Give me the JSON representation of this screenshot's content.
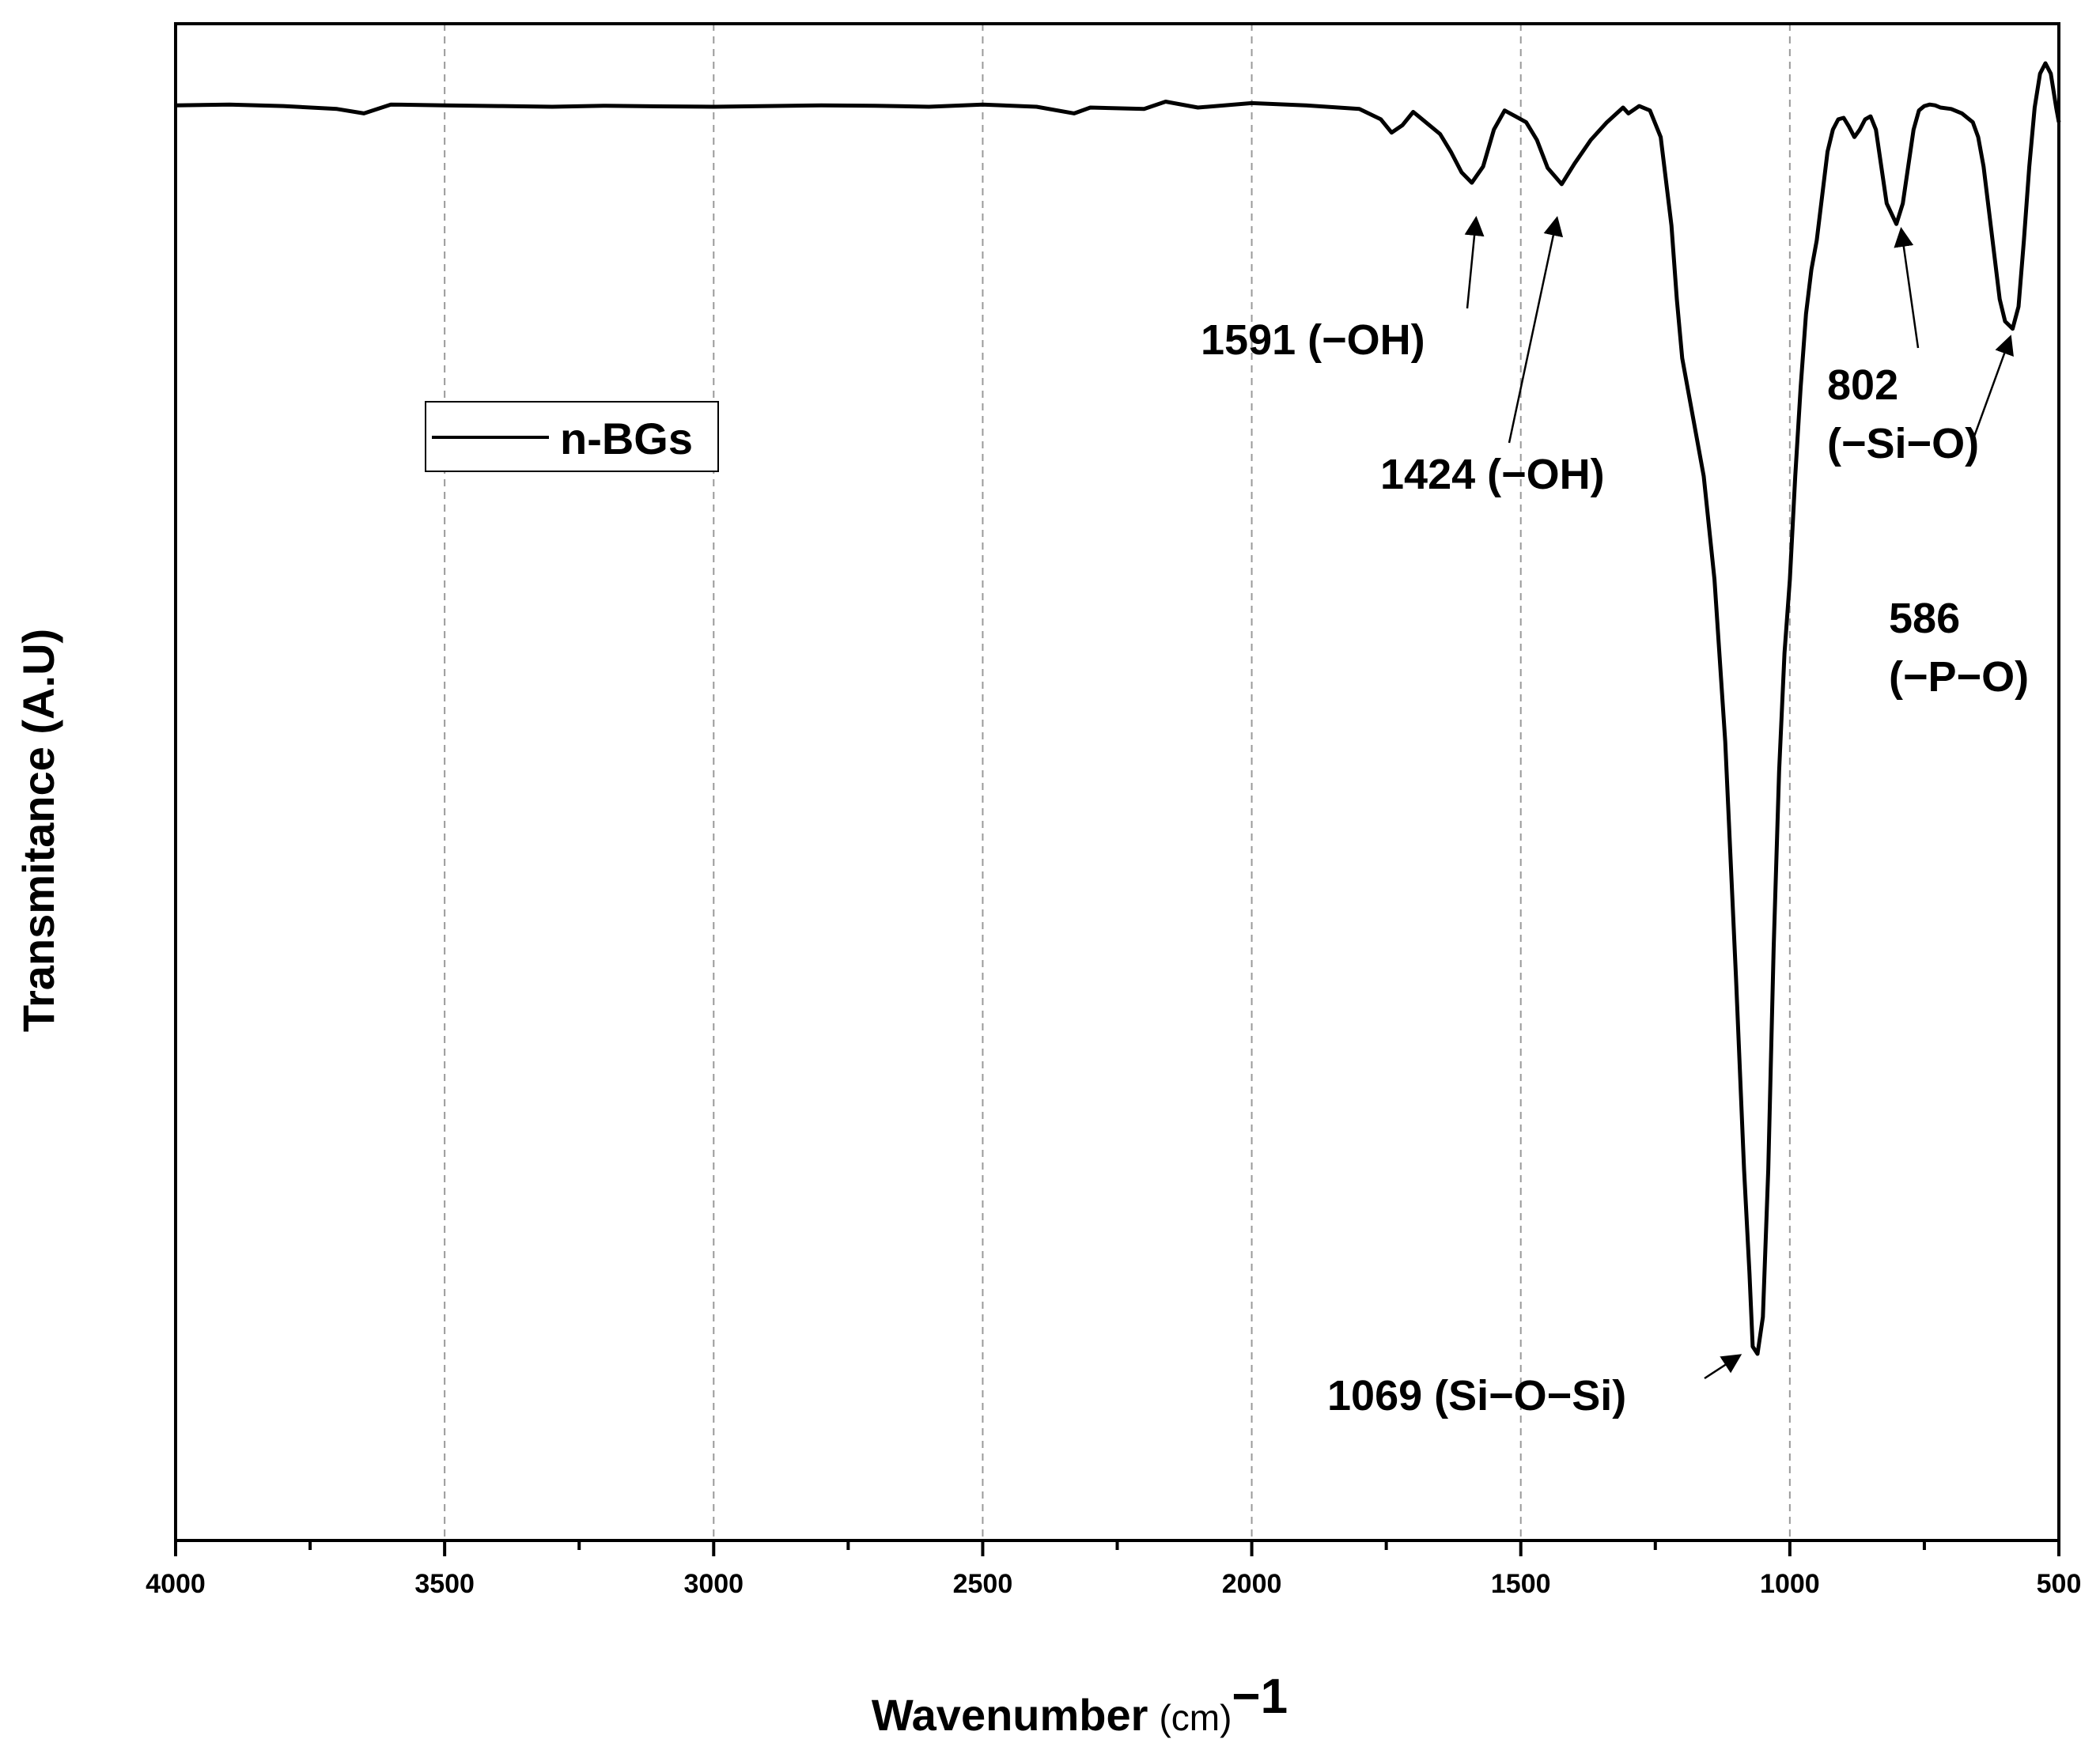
{
  "chart_data": {
    "type": "line",
    "title": "",
    "xlabel": "Wavenumber",
    "xlabel_unit": "(cm)",
    "xlabel_sup": "−1",
    "ylabel": "Transmitance (A.U)",
    "xlim": [
      4000,
      500
    ],
    "ylim": [
      0,
      1
    ],
    "x_reversed": true,
    "grid": "vertical-dashed",
    "xticks": [
      4000,
      3500,
      3000,
      2500,
      2000,
      1500,
      1000,
      500
    ],
    "xtick_labels": [
      "4000",
      "3500",
      "3000",
      "2500",
      "2000",
      "1500",
      "1000",
      "500"
    ],
    "legend": {
      "position": "upper-left",
      "entries": [
        "n-BGs"
      ]
    },
    "series": [
      {
        "name": "n-BGs",
        "color": "#000000",
        "x": [
          4000,
          3900,
          3800,
          3700,
          3650,
          3600,
          3500,
          3400,
          3300,
          3200,
          3100,
          3000,
          2900,
          2800,
          2700,
          2600,
          2500,
          2400,
          2330,
          2300,
          2200,
          2160,
          2100,
          2000,
          1900,
          1800,
          1760,
          1740,
          1720,
          1700,
          1690,
          1670,
          1650,
          1630,
          1610,
          1591,
          1570,
          1550,
          1530,
          1510,
          1490,
          1470,
          1450,
          1424,
          1400,
          1370,
          1340,
          1310,
          1300,
          1280,
          1260,
          1240,
          1220,
          1210,
          1200,
          1180,
          1160,
          1140,
          1120,
          1100,
          1085,
          1075,
          1069,
          1060,
          1050,
          1040,
          1030,
          1020,
          1010,
          1000,
          990,
          980,
          970,
          960,
          950,
          940,
          930,
          920,
          910,
          900,
          890,
          880,
          870,
          860,
          850,
          840,
          830,
          820,
          802,
          790,
          780,
          770,
          760,
          750,
          740,
          730,
          720,
          700,
          680,
          660,
          650,
          640,
          630,
          620,
          610,
          600,
          586,
          575,
          565,
          555,
          545,
          535,
          525,
          515,
          505,
          500
        ],
        "y": [
          0.9715,
          0.972,
          0.971,
          0.969,
          0.966,
          0.972,
          0.9715,
          0.971,
          0.9705,
          0.9712,
          0.9708,
          0.9705,
          0.971,
          0.9715,
          0.9712,
          0.9705,
          0.972,
          0.9705,
          0.966,
          0.97,
          0.969,
          0.974,
          0.97,
          0.973,
          0.9715,
          0.969,
          0.962,
          0.953,
          0.958,
          0.967,
          0.964,
          0.958,
          0.952,
          0.94,
          0.926,
          0.919,
          0.93,
          0.955,
          0.968,
          0.964,
          0.96,
          0.948,
          0.929,
          0.918,
          0.932,
          0.948,
          0.96,
          0.97,
          0.966,
          0.971,
          0.968,
          0.95,
          0.89,
          0.84,
          0.8,
          0.76,
          0.72,
          0.65,
          0.54,
          0.38,
          0.25,
          0.18,
          0.13,
          0.125,
          0.15,
          0.25,
          0.4,
          0.52,
          0.6,
          0.65,
          0.72,
          0.78,
          0.83,
          0.86,
          0.88,
          0.91,
          0.94,
          0.955,
          0.962,
          0.963,
          0.957,
          0.95,
          0.955,
          0.962,
          0.964,
          0.955,
          0.93,
          0.905,
          0.891,
          0.905,
          0.93,
          0.955,
          0.968,
          0.971,
          0.972,
          0.9715,
          0.97,
          0.969,
          0.966,
          0.96,
          0.95,
          0.93,
          0.9,
          0.87,
          0.84,
          0.825,
          0.82,
          0.835,
          0.88,
          0.93,
          0.97,
          0.993,
          1.0,
          0.993,
          0.97,
          0.96
        ]
      }
    ],
    "annotations": [
      {
        "lines": [
          "1591 (−OH)"
        ],
        "x": 1591
      },
      {
        "lines": [
          "1424 (−OH)"
        ],
        "x": 1424
      },
      {
        "lines": [
          "1069 (Si−O−Si)"
        ],
        "x": 1069
      },
      {
        "lines": [
          "802",
          "(−Si−O)"
        ],
        "x": 802
      },
      {
        "lines": [
          "586",
          "(−P−O)"
        ],
        "x": 586
      }
    ]
  }
}
